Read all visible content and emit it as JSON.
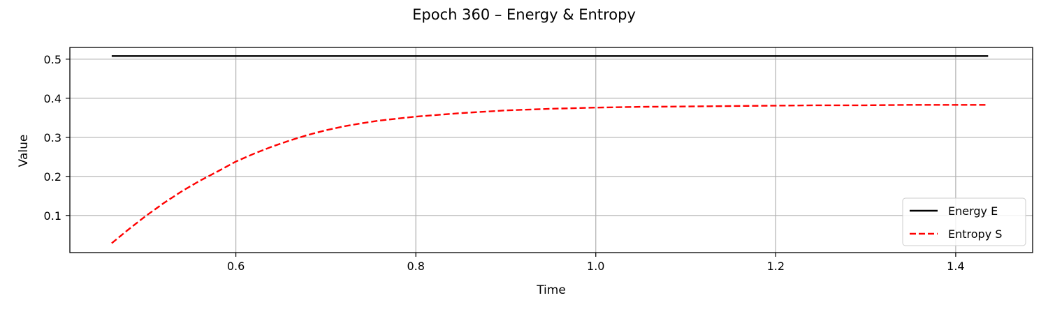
{
  "chart_data": {
    "type": "line",
    "title": "Epoch 360 – Energy & Entropy",
    "xlabel": "Time",
    "ylabel": "Value",
    "xlim": [
      0.4155,
      1.4855
    ],
    "ylim": [
      0.005,
      0.53
    ],
    "xticks": [
      0.6,
      0.8,
      1.0,
      1.2,
      1.4
    ],
    "xtick_labels": [
      "0.6",
      "0.8",
      "1.0",
      "1.2",
      "1.4"
    ],
    "yticks": [
      0.1,
      0.2,
      0.3,
      0.4,
      0.5
    ],
    "ytick_labels": [
      "0.1",
      "0.2",
      "0.3",
      "0.4",
      "0.5"
    ],
    "grid": true,
    "legend_position": "lower-right",
    "series": [
      {
        "name": "Energy E",
        "color": "#000000",
        "style": "solid",
        "x": [
          0.462,
          1.436
        ],
        "y": [
          0.508,
          0.508
        ]
      },
      {
        "name": "Entropy S",
        "color": "#ff0000",
        "style": "dashed",
        "x": [
          0.462,
          0.48,
          0.5,
          0.52,
          0.54,
          0.56,
          0.58,
          0.6,
          0.62,
          0.64,
          0.66,
          0.68,
          0.7,
          0.72,
          0.74,
          0.76,
          0.78,
          0.8,
          0.85,
          0.9,
          0.95,
          1.0,
          1.05,
          1.1,
          1.15,
          1.2,
          1.25,
          1.3,
          1.35,
          1.4,
          1.436
        ],
        "y": [
          0.029,
          0.063,
          0.099,
          0.132,
          0.162,
          0.189,
          0.213,
          0.238,
          0.258,
          0.276,
          0.292,
          0.306,
          0.318,
          0.328,
          0.336,
          0.343,
          0.348,
          0.353,
          0.362,
          0.369,
          0.373,
          0.376,
          0.378,
          0.379,
          0.38,
          0.381,
          0.382,
          0.382,
          0.383,
          0.383,
          0.383
        ]
      }
    ]
  }
}
